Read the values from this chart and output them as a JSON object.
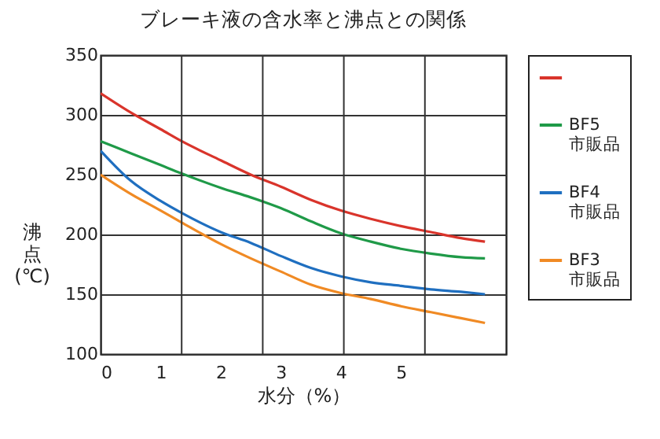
{
  "chart_data": {
    "type": "line",
    "title": "ブレーキ液の含水率と沸点との関係",
    "xlabel": "水分（%）",
    "ylabel": "沸点(℃)",
    "xlim": [
      0,
      6.75
    ],
    "ylim": [
      100,
      350
    ],
    "xticks": [
      0,
      1,
      2,
      3,
      4,
      5,
      {
        "value": 1.35,
        "label": null
      },
      {
        "value": 2.7,
        "label": null
      },
      {
        "value": 4.05,
        "label": null
      },
      {
        "value": 5.4,
        "label": null
      }
    ],
    "yticks": [
      100,
      150,
      200,
      250,
      300,
      350
    ],
    "grid": true,
    "legend": "right",
    "x": [
      0,
      0.5,
      1,
      1.35,
      2,
      2.5,
      3,
      3.5,
      4,
      4.5,
      5,
      5.5,
      6,
      6.4
    ],
    "series": [
      {
        "color": "#d9342b",
        "values": [
          318,
          302,
          288,
          278,
          262,
          250,
          240,
          229,
          220,
          213,
          207,
          202,
          197,
          194
        ]
      },
      {
        "name": "BF5 市販品",
        "color": "#1f9a48",
        "values": [
          278,
          268,
          258,
          251,
          239,
          231,
          222,
          211,
          201,
          194,
          188,
          184,
          181,
          180
        ]
      },
      {
        "name": "BF4 市販品",
        "color": "#1f6fc0",
        "values": [
          270,
          245,
          228,
          218,
          202,
          193,
          182,
          172,
          165,
          160,
          157,
          154,
          152,
          150
        ]
      },
      {
        "name": "BF3 市販品",
        "color": "#f08a24",
        "values": [
          250,
          234,
          220,
          210,
          192,
          180,
          169,
          158,
          151,
          146,
          140,
          135,
          130,
          126
        ]
      }
    ]
  }
}
